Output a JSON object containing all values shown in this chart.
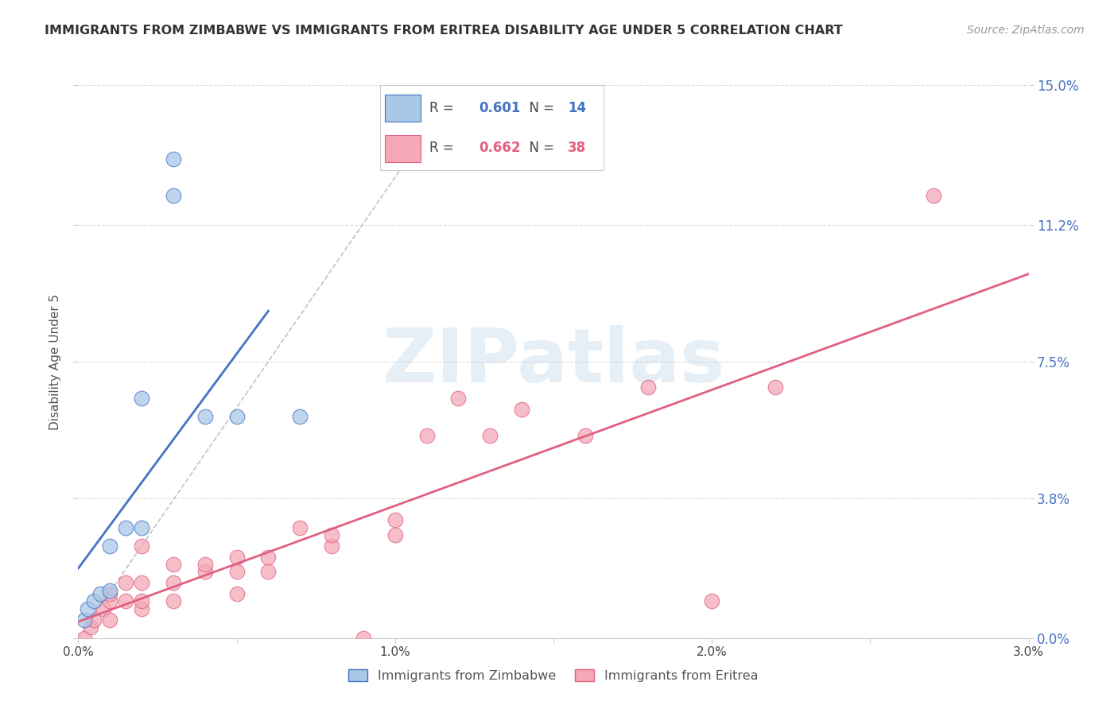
{
  "title": "IMMIGRANTS FROM ZIMBABWE VS IMMIGRANTS FROM ERITREA DISABILITY AGE UNDER 5 CORRELATION CHART",
  "source": "Source: ZipAtlas.com",
  "ylabel": "Disability Age Under 5",
  "legend_label1": "Immigrants from Zimbabwe",
  "legend_label2": "Immigrants from Eritrea",
  "R1": 0.601,
  "N1": 14,
  "R2": 0.662,
  "N2": 38,
  "color1": "#a8c8e8",
  "color2": "#f4a8b8",
  "line_color1": "#4472c4",
  "line_color2": "#e06080",
  "xlim": [
    0.0,
    0.03
  ],
  "ylim": [
    0.0,
    0.15
  ],
  "x_ticks": [
    0.0,
    0.005,
    0.01,
    0.015,
    0.02,
    0.025,
    0.03
  ],
  "x_tick_labels": [
    "0.0%",
    "",
    "1.0%",
    "",
    "2.0%",
    "",
    "3.0%"
  ],
  "y_tick_labels": [
    "0.0%",
    "3.8%",
    "7.5%",
    "11.2%",
    "15.0%"
  ],
  "y_ticks": [
    0.0,
    0.038,
    0.075,
    0.112,
    0.15
  ],
  "watermark": "ZIPatlas",
  "background_color": "#ffffff",
  "zimbabwe_x": [
    0.0002,
    0.0003,
    0.0005,
    0.0007,
    0.001,
    0.001,
    0.0015,
    0.002,
    0.002,
    0.003,
    0.003,
    0.004,
    0.005,
    0.007
  ],
  "zimbabwe_y": [
    0.005,
    0.008,
    0.01,
    0.012,
    0.013,
    0.025,
    0.03,
    0.03,
    0.065,
    0.13,
    0.12,
    0.06,
    0.06,
    0.06
  ],
  "eritrea_x": [
    0.0002,
    0.0004,
    0.0005,
    0.0008,
    0.001,
    0.001,
    0.001,
    0.0015,
    0.0015,
    0.002,
    0.002,
    0.002,
    0.002,
    0.003,
    0.003,
    0.003,
    0.004,
    0.004,
    0.005,
    0.005,
    0.005,
    0.006,
    0.006,
    0.007,
    0.008,
    0.008,
    0.009,
    0.01,
    0.01,
    0.011,
    0.012,
    0.013,
    0.014,
    0.016,
    0.018,
    0.02,
    0.022,
    0.027
  ],
  "eritrea_y": [
    0.0,
    0.003,
    0.005,
    0.008,
    0.005,
    0.01,
    0.012,
    0.01,
    0.015,
    0.008,
    0.01,
    0.015,
    0.025,
    0.01,
    0.015,
    0.02,
    0.018,
    0.02,
    0.012,
    0.018,
    0.022,
    0.018,
    0.022,
    0.03,
    0.025,
    0.028,
    0.0,
    0.028,
    0.032,
    0.055,
    0.065,
    0.055,
    0.062,
    0.055,
    0.068,
    0.01,
    0.068,
    0.12
  ]
}
